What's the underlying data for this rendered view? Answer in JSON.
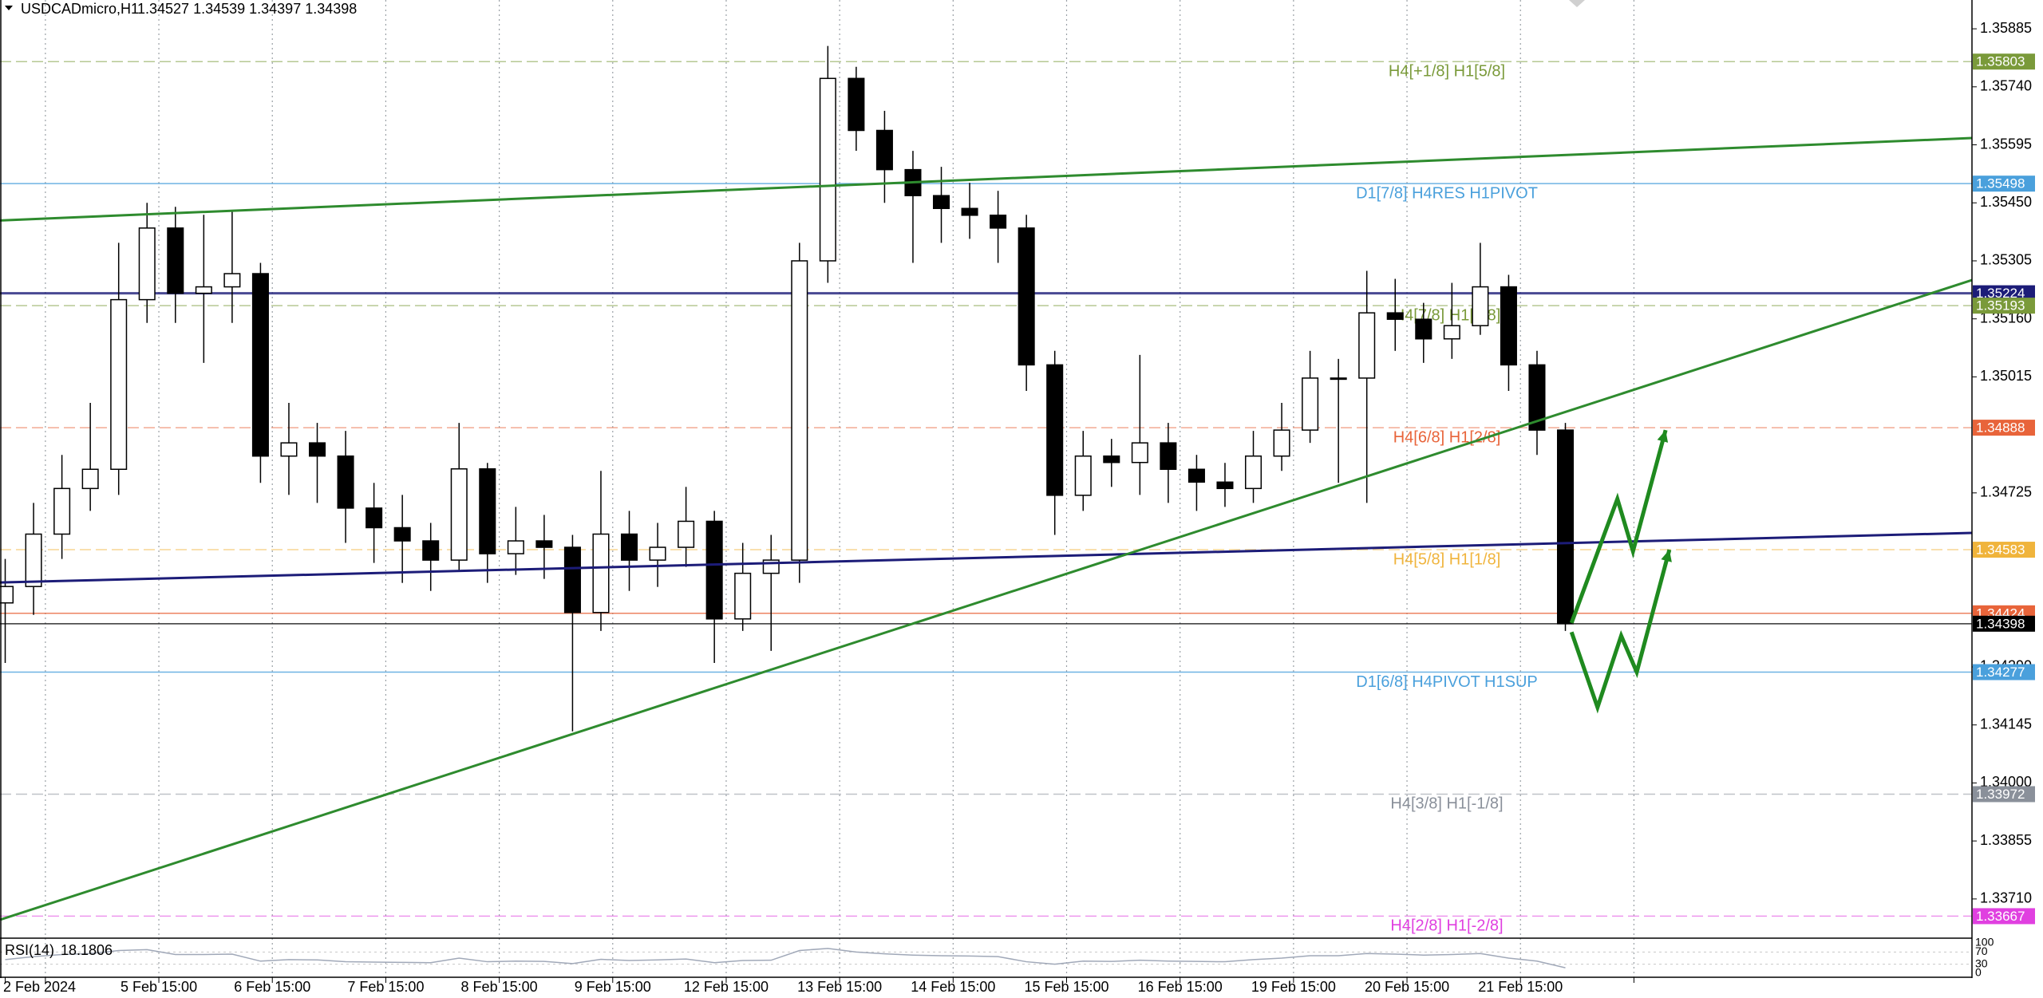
{
  "chart_data": {
    "type": "candlestick",
    "title": "USDCADmicro,H1",
    "quote": "1.34527 1.34539 1.34397 1.34398",
    "xlim": [
      -1.1,
      416
    ],
    "ylim": [
      1.33614,
      1.35957
    ],
    "xticks": [
      {
        "value": 0,
        "label": "2 Feb 2024"
      },
      {
        "value": 8.5,
        "label": null
      },
      {
        "value": 32.5,
        "label": "5 Feb 15:00"
      },
      {
        "value": 56.5,
        "label": "6 Feb 15:00"
      },
      {
        "value": 80.5,
        "label": "7 Feb 15:00"
      },
      {
        "value": 104.5,
        "label": "8 Feb 15:00"
      },
      {
        "value": 128.5,
        "label": "9 Feb 15:00"
      },
      {
        "value": 152.5,
        "label": "12 Feb 15:00"
      },
      {
        "value": 176.5,
        "label": "13 Feb 15:00"
      },
      {
        "value": 200.5,
        "label": "14 Feb 15:00"
      },
      {
        "value": 224.5,
        "label": "15 Feb 15:00"
      },
      {
        "value": 248.5,
        "label": "16 Feb 15:00"
      },
      {
        "value": 272.5,
        "label": "19 Feb 15:00"
      },
      {
        "value": 296.5,
        "label": "20 Feb 15:00"
      },
      {
        "value": 320.5,
        "label": "21 Feb 15:00"
      },
      {
        "value": 344.5,
        "label": null
      }
    ],
    "yticks": [
      1.35885,
      {
        "value": 1.3574,
        "label": "1.35740"
      },
      1.35595,
      {
        "value": 1.3545,
        "label": "1.35450"
      },
      1.35305,
      {
        "value": 1.3516,
        "label": "1.35160"
      },
      1.35015,
      1.34725,
      {
        "value": 1.3429,
        "label": "1.34290"
      },
      1.34145,
      {
        "value": 1.34,
        "label": "1.34000"
      },
      1.33855,
      {
        "value": 1.3371,
        "label": "1.33710"
      }
    ],
    "grid": true,
    "up_color": "#ffffff",
    "down_color": "#000000",
    "x": [
      0,
      6,
      12,
      18,
      24,
      30,
      36,
      42,
      48,
      54,
      60,
      66,
      72,
      78,
      84,
      90,
      96,
      102,
      108,
      114,
      120,
      126,
      132,
      138,
      144,
      150,
      156,
      162,
      168,
      174,
      180,
      186,
      192,
      198,
      204,
      210,
      216,
      222,
      228,
      234,
      240,
      246,
      252,
      258,
      264,
      270,
      276,
      282,
      288,
      294,
      300,
      306,
      312,
      318,
      324,
      330
    ],
    "open": [
      1.3445,
      1.34491,
      1.34622,
      1.34736,
      1.34784,
      1.35208,
      1.35387,
      1.35224,
      1.3524,
      1.35273,
      1.34817,
      1.3485,
      1.34817,
      1.34687,
      1.34638,
      1.34605,
      1.34557,
      1.34785,
      1.34573,
      1.34605,
      1.34589,
      1.34426,
      1.34622,
      1.34557,
      1.34589,
      1.34654,
      1.3441,
      1.34524,
      1.34557,
      1.35305,
      1.35761,
      1.35631,
      1.35533,
      1.35468,
      1.35436,
      1.35419,
      1.35387,
      1.35045,
      1.34719,
      1.34817,
      1.34801,
      1.3485,
      1.34784,
      1.34752,
      1.34736,
      1.34817,
      1.34882,
      1.35012,
      1.35012,
      1.35175,
      1.35159,
      1.3511,
      1.35143,
      1.3524,
      1.35045,
      1.34882
    ],
    "high": [
      1.3456,
      1.347,
      1.3482,
      1.3495,
      1.3535,
      1.3545,
      1.3544,
      1.3542,
      1.3543,
      1.353,
      1.3495,
      1.349,
      1.3488,
      1.3475,
      1.3472,
      1.3465,
      1.349,
      1.348,
      1.3469,
      1.3467,
      1.3462,
      1.3478,
      1.3468,
      1.3465,
      1.3474,
      1.3468,
      1.346,
      1.3462,
      1.3535,
      1.35842,
      1.3579,
      1.3568,
      1.3558,
      1.3554,
      1.355,
      1.3548,
      1.3542,
      1.3508,
      1.3488,
      1.3486,
      1.3507,
      1.349,
      1.3482,
      1.348,
      1.3488,
      1.3495,
      1.3508,
      1.3506,
      1.3528,
      1.3526,
      1.352,
      1.3525,
      1.3535,
      1.3527,
      1.3508,
      1.349
    ],
    "low": [
      1.343,
      1.3442,
      1.3456,
      1.3468,
      1.3472,
      1.3515,
      1.3515,
      1.3505,
      1.3515,
      1.3475,
      1.3472,
      1.347,
      1.346,
      1.3455,
      1.345,
      1.3448,
      1.3453,
      1.345,
      1.3452,
      1.3451,
      1.34129,
      1.3438,
      1.3448,
      1.3449,
      1.3454,
      1.343,
      1.3438,
      1.3433,
      1.345,
      1.3525,
      1.3558,
      1.3545,
      1.353,
      1.3535,
      1.3536,
      1.353,
      1.3498,
      1.3462,
      1.3468,
      1.3474,
      1.3472,
      1.347,
      1.3468,
      1.3469,
      1.347,
      1.3478,
      1.3485,
      1.3475,
      1.347,
      1.3508,
      1.3505,
      1.3506,
      1.3512,
      1.3498,
      1.3482,
      1.3438
    ],
    "close": [
      1.34491,
      1.34622,
      1.34736,
      1.34784,
      1.35208,
      1.35387,
      1.35224,
      1.3524,
      1.35273,
      1.34817,
      1.3485,
      1.34817,
      1.34687,
      1.34638,
      1.34605,
      1.34557,
      1.34785,
      1.34573,
      1.34605,
      1.34589,
      1.34426,
      1.34622,
      1.34557,
      1.34589,
      1.34654,
      1.3441,
      1.34524,
      1.34557,
      1.35305,
      1.35761,
      1.35631,
      1.35533,
      1.35468,
      1.35436,
      1.35419,
      1.35387,
      1.35045,
      1.34719,
      1.34817,
      1.34801,
      1.3485,
      1.34784,
      1.34752,
      1.34736,
      1.34817,
      1.34882,
      1.35012,
      1.35012,
      1.35175,
      1.35159,
      1.3511,
      1.35143,
      1.3524,
      1.35045,
      1.34882,
      1.34398
    ],
    "levels": [
      {
        "value": 1.35803,
        "color": "#7a9a3a",
        "dash": true,
        "label": "H4[+1/8] H1[5/8]"
      },
      {
        "value": 1.35498,
        "color": "#4aa0dc",
        "dash": false,
        "label": "D1[7/8] H4RES H1PIVOT"
      },
      {
        "value": 1.35224,
        "color": "#1c1c78",
        "dash": false,
        "width": 3
      },
      {
        "value": 1.35193,
        "color": "#7a9a3a",
        "dash": true,
        "label": "H4[7/8] H1[3/8]"
      },
      {
        "value": 1.34888,
        "color": "#e8643a",
        "dash": true,
        "label": "H4[6/8] H1[2/8]"
      },
      {
        "value": 1.34583,
        "color": "#f0b43c",
        "dash": true,
        "label": "H4[5/8] H1[1/8]"
      },
      {
        "value": 1.34424,
        "color": "#e8643a",
        "dash": false
      },
      {
        "value": 1.34398,
        "color": "#000000",
        "dash": false
      },
      {
        "value": 1.34277,
        "color": "#4aa0dc",
        "dash": false,
        "label": "D1[6/8] H4PIVOT H1SUP"
      },
      {
        "value": 1.33972,
        "color": "#8a909a",
        "dash": true,
        "label": "H4[3/8] H1[-1/8]"
      },
      {
        "value": 1.33667,
        "color": "#e040e0",
        "dash": true,
        "label": "H4[2/8] H1[-2/8]"
      }
    ],
    "trendlines": [
      {
        "color": "#2e8b2e",
        "width": 3,
        "x": [
          -1.1,
          416
        ],
        "y": [
          1.35406,
          1.35612
        ]
      },
      {
        "color": "#1c1c78",
        "width": 3,
        "x": [
          -1.1,
          416
        ],
        "y": [
          1.34501,
          1.34625
        ]
      },
      {
        "color": "#2e8b2e",
        "width": 3,
        "x": [
          -1.1,
          416
        ],
        "y": [
          1.33658,
          1.35257
        ]
      },
      {
        "color": "#1f8a1f",
        "width": 5,
        "x": [
          331.3,
          341,
          344.3,
          351.2
        ],
        "y": [
          1.344,
          1.3471,
          1.34579,
          1.34882
        ]
      },
      {
        "color": "#1f8a1f",
        "width": 5,
        "x": [
          331.3,
          336.8,
          341.8,
          345.1,
          352
        ],
        "y": [
          1.34377,
          1.34189,
          1.34368,
          1.34277,
          1.34583
        ]
      }
    ],
    "rsi": {
      "name": "RSI(14)",
      "color": "#a0a8b8",
      "ylim": [
        0,
        100
      ],
      "yticks": [
        100,
        70,
        30,
        0
      ],
      "values": [
        45,
        55,
        62,
        65,
        75,
        78,
        62,
        62,
        63,
        40,
        45,
        44,
        38,
        37,
        36,
        35,
        50,
        38,
        40,
        39,
        32,
        46,
        42,
        44,
        47,
        35,
        42,
        43,
        75,
        82,
        70,
        64,
        60,
        58,
        57,
        55,
        38,
        30,
        40,
        39,
        43,
        40,
        39,
        38,
        45,
        50,
        58,
        58,
        65,
        63,
        60,
        62,
        65,
        50,
        40,
        18.1806
      ]
    }
  }
}
